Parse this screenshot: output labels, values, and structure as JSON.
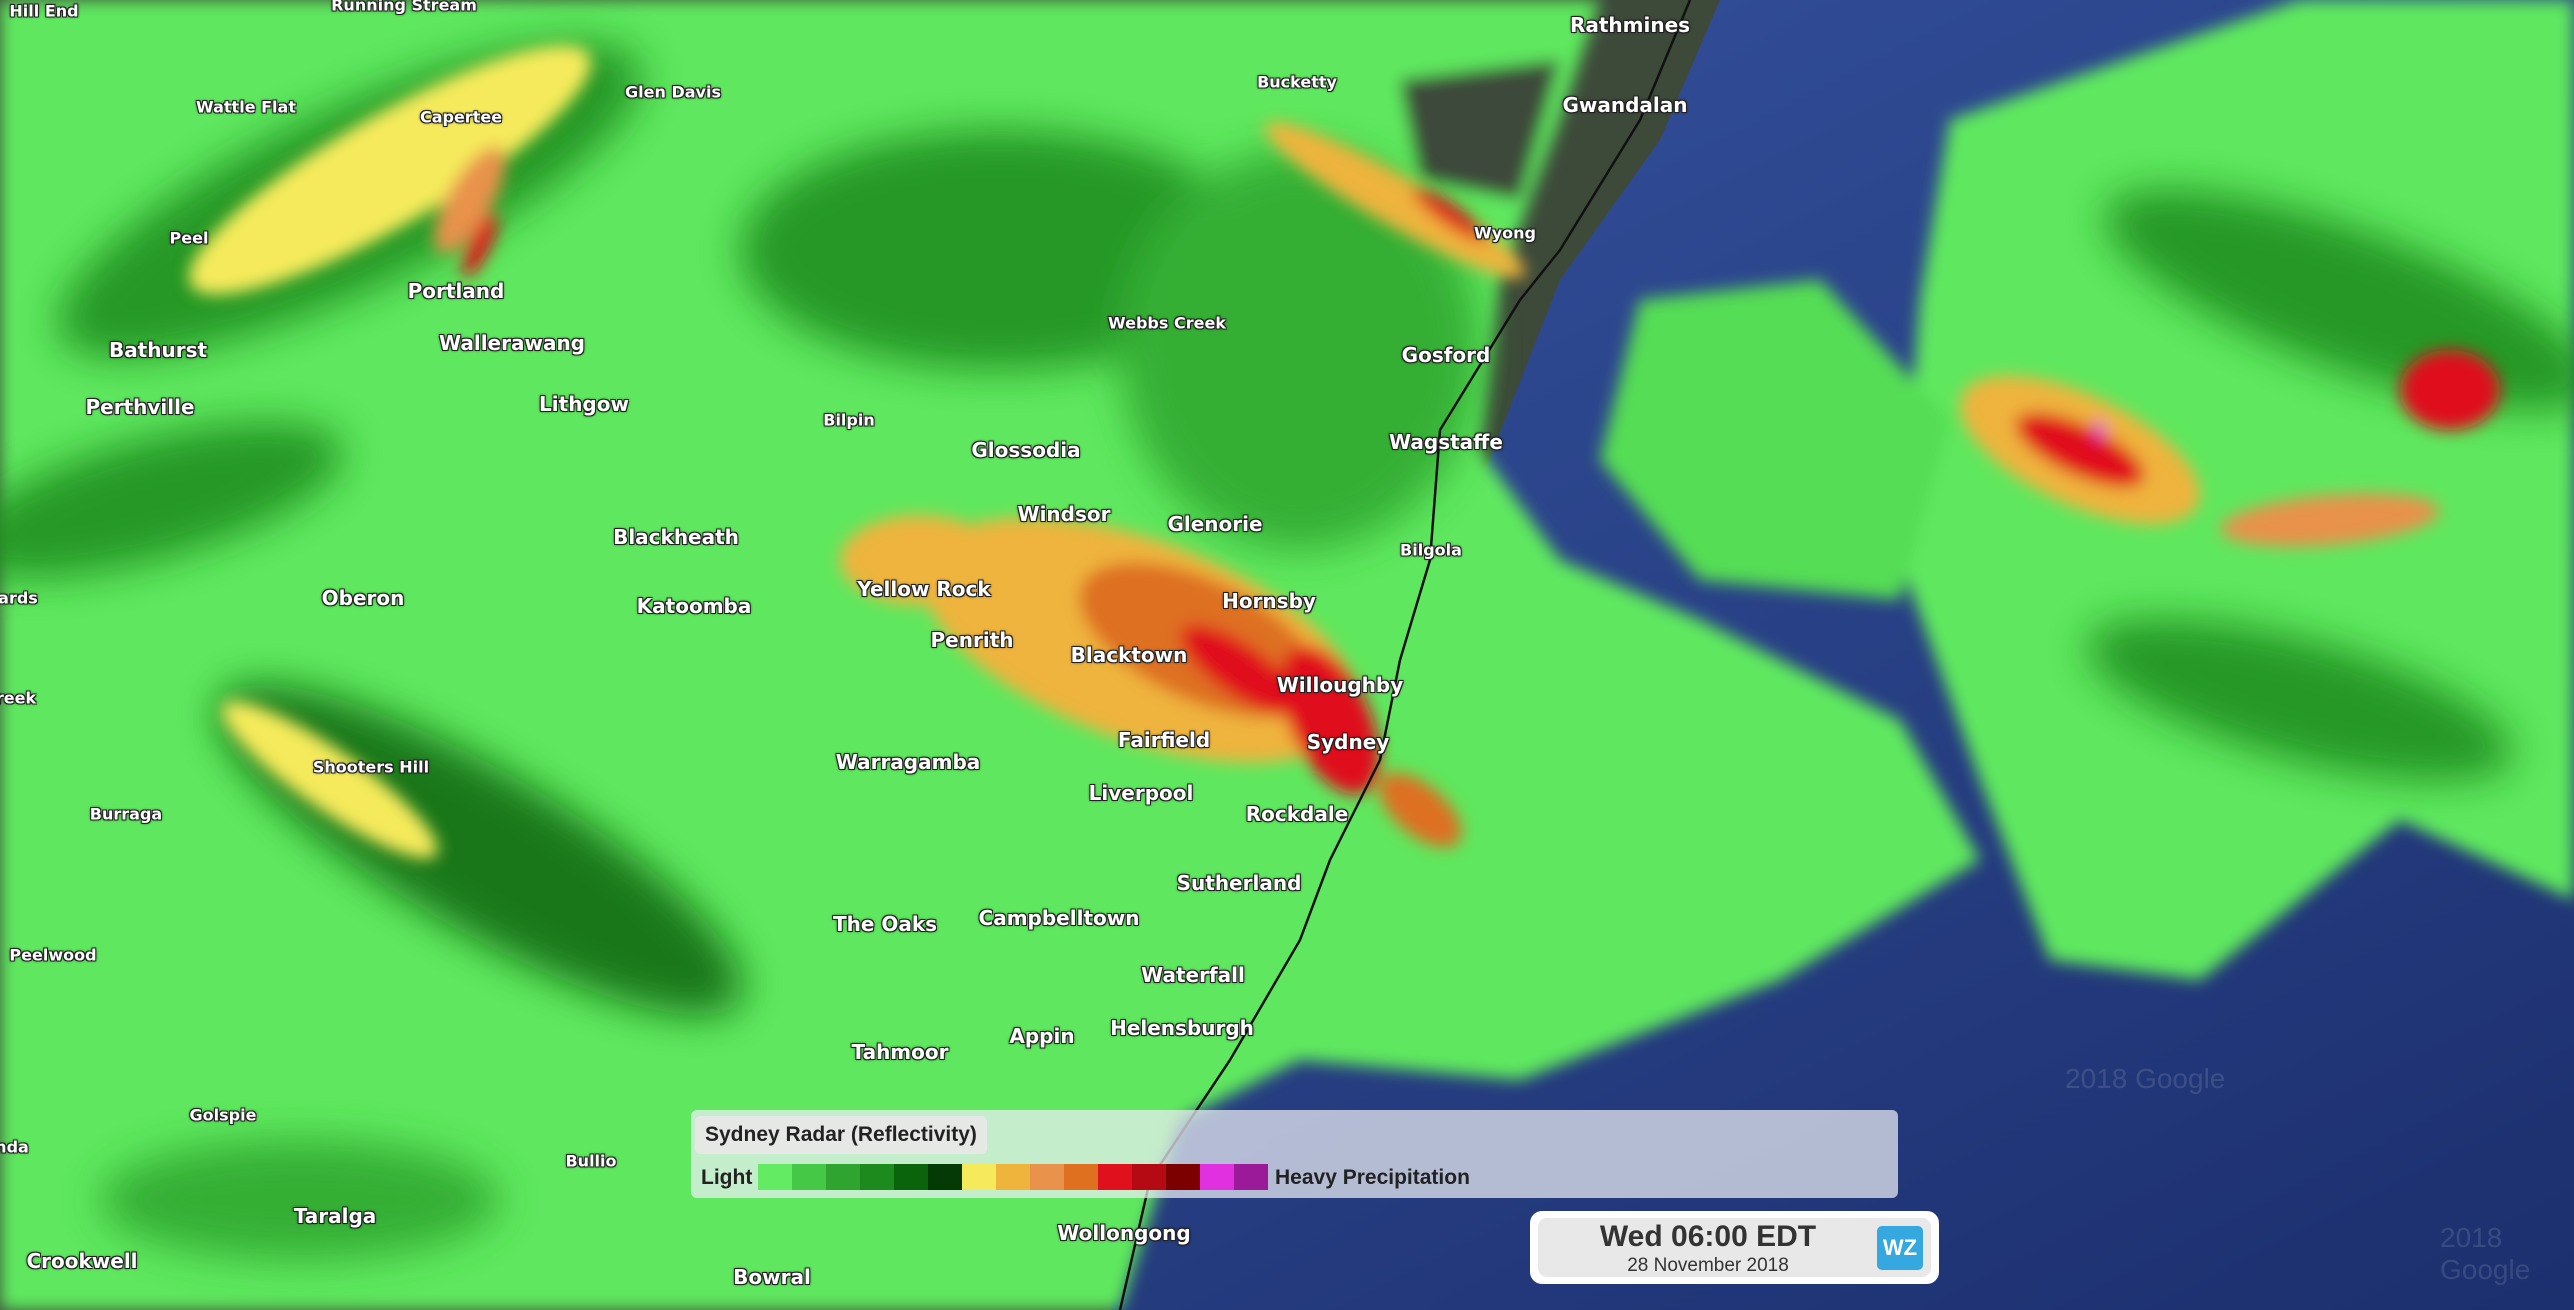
{
  "map": {
    "type": "weather radar overlay on satellite imagery",
    "watermark": "2018 Google",
    "place_labels": [
      {
        "name": "Hill End"
      },
      {
        "name": "Running Stream"
      },
      {
        "name": "Wattle Flat"
      },
      {
        "name": "Capertee"
      },
      {
        "name": "Glen Davis"
      },
      {
        "name": "Peel"
      },
      {
        "name": "Portland"
      },
      {
        "name": "Bathurst"
      },
      {
        "name": "Wallerawang"
      },
      {
        "name": "Perthville"
      },
      {
        "name": "Lithgow"
      },
      {
        "name": "Bilpin"
      },
      {
        "name": "Bucketty"
      },
      {
        "name": "Rathmines"
      },
      {
        "name": "Gwandalan"
      },
      {
        "name": "Wyong"
      },
      {
        "name": "Webbs Creek"
      },
      {
        "name": "Gosford"
      },
      {
        "name": "Wagstaffe"
      },
      {
        "name": "Glossodia"
      },
      {
        "name": "Bilgola"
      },
      {
        "name": "Windsor"
      },
      {
        "name": "Glenorie"
      },
      {
        "name": "Blackheath"
      },
      {
        "name": "Yellow Rock"
      },
      {
        "name": "Hornsby"
      },
      {
        "name": "Oberon"
      },
      {
        "name": "Katoomba"
      },
      {
        "name": "ards"
      },
      {
        "name": "Penrith"
      },
      {
        "name": "Blacktown"
      },
      {
        "name": "Willoughby"
      },
      {
        "name": "reek"
      },
      {
        "name": "Sydney"
      },
      {
        "name": "Fairfield"
      },
      {
        "name": "Shooters Hill"
      },
      {
        "name": "Warragamba"
      },
      {
        "name": "Liverpool"
      },
      {
        "name": "Burraga"
      },
      {
        "name": "Rockdale"
      },
      {
        "name": "Sutherland"
      },
      {
        "name": "The Oaks"
      },
      {
        "name": "Campbelltown"
      },
      {
        "name": "Peelwood"
      },
      {
        "name": "Waterfall"
      },
      {
        "name": "Appin"
      },
      {
        "name": "Helensburgh"
      },
      {
        "name": "Tahmoor"
      },
      {
        "name": "Golspie"
      },
      {
        "name": "Bullio"
      },
      {
        "name": "nda"
      },
      {
        "name": "Taralga"
      },
      {
        "name": "Crookwell"
      },
      {
        "name": "Wollongong"
      },
      {
        "name": "Bowral"
      }
    ]
  },
  "legend": {
    "title": "Sydney Radar (Reflectivity)",
    "low_label": "Light",
    "high_label": "Heavy Precipitation",
    "colors": [
      "#63ec63",
      "#45c845",
      "#2fa52f",
      "#1c8a1c",
      "#0b640b",
      "#053905",
      "#f5ea5c",
      "#eeb43c",
      "#e8924c",
      "#de7020",
      "#e0101c",
      "#b50a14",
      "#7d0000",
      "#e030e0",
      "#9a1a9a"
    ]
  },
  "timestamp": {
    "time": "Wed 06:00 EDT",
    "date": "28 November 2018",
    "logo": "WZ"
  }
}
